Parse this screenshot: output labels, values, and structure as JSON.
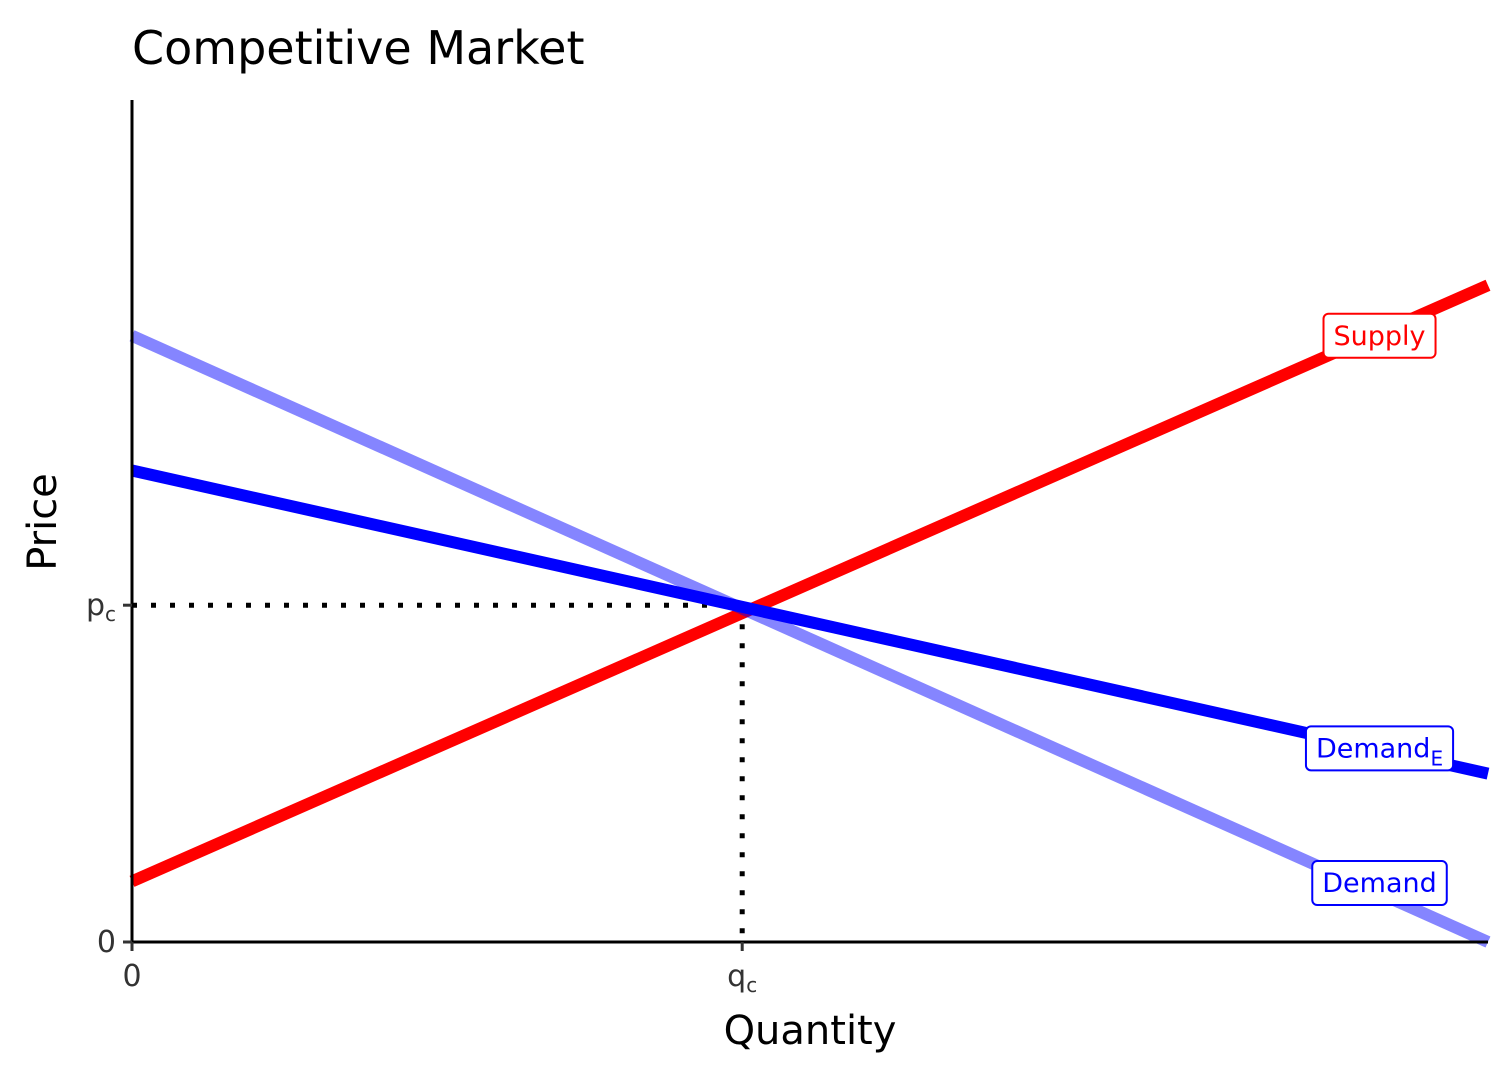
{
  "chart_data": {
    "type": "line",
    "title": "Competitive Market",
    "xlabel": "Quantity",
    "ylabel": "Price",
    "xlim": [
      0,
      10
    ],
    "ylim": [
      0,
      10
    ],
    "grid": false,
    "legend": "none",
    "x_ticks": [
      {
        "value": 0,
        "label": "0",
        "sub": ""
      },
      {
        "value": 4.5,
        "label": "q",
        "sub": "c"
      }
    ],
    "y_ticks": [
      {
        "value": 0,
        "label": "0",
        "sub": ""
      },
      {
        "value": 4,
        "label": "p",
        "sub": "c"
      }
    ],
    "series": [
      {
        "name": "Supply",
        "label": "Supply",
        "label_sub": "",
        "color": "#FF0000",
        "opacity": 1,
        "x": [
          0,
          10
        ],
        "y": [
          0.72,
          7.8
        ],
        "label_at": [
          9.2,
          7.2
        ]
      },
      {
        "name": "Demand",
        "label": "Demand",
        "label_sub": "",
        "color": "#0000FF",
        "opacity": 0.48,
        "x": [
          0,
          10
        ],
        "y": [
          7.2,
          0
        ],
        "label_at": [
          9.2,
          0.7
        ]
      },
      {
        "name": "Demand_E",
        "label": "Demand",
        "label_sub": "E",
        "color": "#0000FF",
        "opacity": 1,
        "x": [
          0,
          10
        ],
        "y": [
          5.6,
          2.0
        ],
        "label_at": [
          9.2,
          2.3
        ]
      }
    ],
    "equilibrium": {
      "x": 4.5,
      "y": 4.0,
      "guide_style": "dotted"
    }
  }
}
